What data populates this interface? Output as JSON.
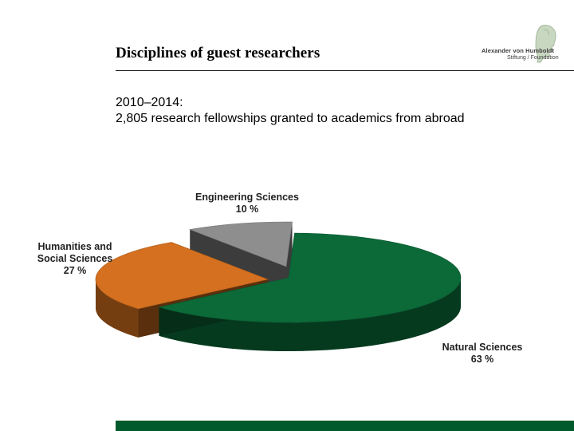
{
  "header": {
    "title": "Disciplines of guest researchers",
    "logo": {
      "line1": "Alexander von Humboldt",
      "line2": "Stiftung / Foundation",
      "icon": "humboldt-profile-icon"
    }
  },
  "subtitle": {
    "line1": "2010–2014:",
    "line2": "2,805 research fellowships granted to academics from abroad"
  },
  "chart_data": {
    "type": "pie",
    "style": "3d-exploded",
    "categories": [
      "Natural Sciences",
      "Humanities and Social Sciences",
      "Engineering Sciences"
    ],
    "values": [
      63,
      27,
      10
    ],
    "unit": "%",
    "colors": [
      "#0b6a38",
      "#d4701f",
      "#8e8e8e"
    ],
    "labels": [
      {
        "lines": [
          "Natural Sciences",
          "63 %"
        ]
      },
      {
        "lines": [
          "Humanities and",
          "Social Sciences",
          "27 %"
        ]
      },
      {
        "lines": [
          "Engineering Sciences",
          "10 %"
        ]
      }
    ]
  },
  "footer": {
    "bar_color": "#005a2b"
  }
}
